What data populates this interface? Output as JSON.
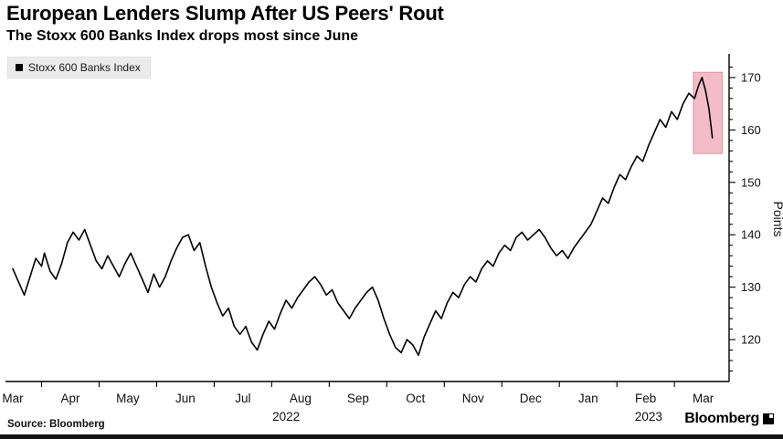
{
  "header": {
    "title": "European Lenders Slump After US Peers' Rout",
    "subtitle": "The Stoxx 600 Banks Index drops most since June"
  },
  "legend": {
    "label": "Stoxx 600 Banks Index",
    "swatch_color": "#000000"
  },
  "footer": {
    "source": "Source: Bloomberg",
    "brand": "Bloomberg"
  },
  "chart_data": {
    "type": "line",
    "title": "European Lenders Slump After US Peers' Rout",
    "subtitle": "The Stoxx 600 Banks Index drops most since June",
    "ylabel": "Points",
    "xlabel": "",
    "xlim": [
      0,
      12.45
    ],
    "ylim": [
      112,
      174
    ],
    "grid": false,
    "legend_position": "top-left",
    "y_ticks": [
      120,
      130,
      140,
      150,
      160,
      170
    ],
    "x_ticks": [
      "Mar",
      "Apr",
      "May",
      "Jun",
      "Jul",
      "Aug",
      "Sep",
      "Oct",
      "Nov",
      "Dec",
      "Jan",
      "Feb",
      "Mar"
    ],
    "year_labels": [
      {
        "label": "2022",
        "x": 4.75
      },
      {
        "label": "2023",
        "x": 11.05
      }
    ],
    "series": [
      {
        "name": "Stoxx 600 Banks Index",
        "color": "#000000",
        "x": [
          0.0,
          0.1,
          0.2,
          0.3,
          0.4,
          0.5,
          0.55,
          0.65,
          0.75,
          0.85,
          0.95,
          1.05,
          1.15,
          1.25,
          1.35,
          1.45,
          1.55,
          1.65,
          1.75,
          1.85,
          1.95,
          2.05,
          2.15,
          2.25,
          2.35,
          2.45,
          2.55,
          2.65,
          2.75,
          2.85,
          2.95,
          3.05,
          3.15,
          3.25,
          3.35,
          3.45,
          3.55,
          3.65,
          3.75,
          3.85,
          3.95,
          4.05,
          4.15,
          4.25,
          4.35,
          4.45,
          4.55,
          4.65,
          4.75,
          4.85,
          4.95,
          5.05,
          5.15,
          5.25,
          5.35,
          5.45,
          5.55,
          5.65,
          5.75,
          5.85,
          5.95,
          6.05,
          6.15,
          6.25,
          6.35,
          6.45,
          6.55,
          6.65,
          6.75,
          6.85,
          6.95,
          7.05,
          7.15,
          7.25,
          7.35,
          7.45,
          7.55,
          7.65,
          7.75,
          7.85,
          7.95,
          8.05,
          8.15,
          8.25,
          8.35,
          8.45,
          8.55,
          8.65,
          8.75,
          8.85,
          8.95,
          9.05,
          9.15,
          9.25,
          9.35,
          9.45,
          9.55,
          9.65,
          9.75,
          9.85,
          9.95,
          10.05,
          10.15,
          10.25,
          10.35,
          10.45,
          10.55,
          10.65,
          10.75,
          10.85,
          10.95,
          11.05,
          11.15,
          11.25,
          11.35,
          11.45,
          11.55,
          11.65,
          11.75,
          11.85,
          11.92,
          11.98,
          12.04,
          12.1,
          12.16
        ],
        "y": [
          133.5,
          131.0,
          128.5,
          132.0,
          135.5,
          134.0,
          136.5,
          133.0,
          131.5,
          134.5,
          138.5,
          140.5,
          139.0,
          141.0,
          138.0,
          135.0,
          133.5,
          136.0,
          134.0,
          132.0,
          134.5,
          136.5,
          134.0,
          131.5,
          129.0,
          132.5,
          130.0,
          132.0,
          135.0,
          137.5,
          139.5,
          140.0,
          137.0,
          138.5,
          134.0,
          130.0,
          127.0,
          124.5,
          126.0,
          122.5,
          121.0,
          122.5,
          119.5,
          118.0,
          121.0,
          123.5,
          122.0,
          125.0,
          127.5,
          126.0,
          128.0,
          129.5,
          131.0,
          132.0,
          130.5,
          128.5,
          129.5,
          127.0,
          125.5,
          124.0,
          126.0,
          127.5,
          129.0,
          130.0,
          127.5,
          124.0,
          121.0,
          118.5,
          117.5,
          120.0,
          119.0,
          117.0,
          120.5,
          123.0,
          125.5,
          124.0,
          127.0,
          129.0,
          128.0,
          130.5,
          132.0,
          131.0,
          133.5,
          135.0,
          134.0,
          136.5,
          138.0,
          137.0,
          139.5,
          140.5,
          139.0,
          140.0,
          141.0,
          139.5,
          137.5,
          136.0,
          137.0,
          135.5,
          137.5,
          139.0,
          140.5,
          142.0,
          144.5,
          147.0,
          146.0,
          149.0,
          151.5,
          150.5,
          153.0,
          155.0,
          154.0,
          157.0,
          159.5,
          162.0,
          160.5,
          163.5,
          162.0,
          165.0,
          167.0,
          166.0,
          168.5,
          170.0,
          167.5,
          164.0,
          158.5
        ]
      }
    ],
    "highlight": {
      "x0": 11.83,
      "x1": 12.33,
      "y0": 155.5,
      "y1": 171.0,
      "fill": "#f2b3c1",
      "stroke": "#e08fa2",
      "opacity": 0.88
    }
  }
}
